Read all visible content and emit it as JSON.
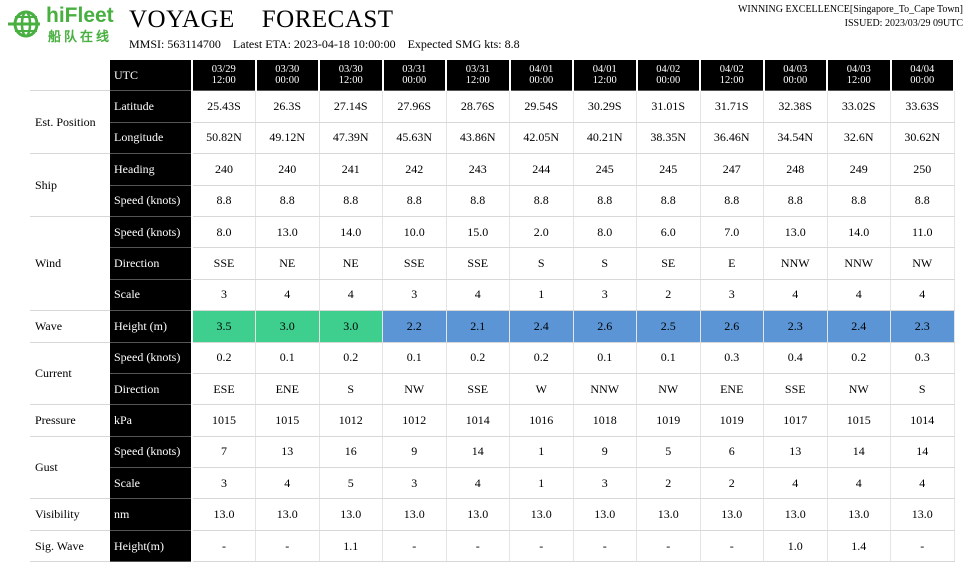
{
  "brand": {
    "name_en": "hiFleet",
    "name_zh": "船队在线"
  },
  "header": {
    "title": "VOYAGE    FORECAST",
    "mmsi": "MMSI: 563114700",
    "eta": "Latest ETA: 2023-04-18 10:00:00",
    "smg": "Expected SMG kts: 8.8",
    "vessel_route": "WINNING EXCELLENCE[Singapore_To_Cape Town]",
    "issued": "ISSUED: 2023/03/29 09UTC"
  },
  "colors": {
    "wave_calm": "#3ecf8e",
    "wave_moderate": "#5b95d5",
    "header_bg": "#000000",
    "brand": "#48b040"
  },
  "table": {
    "utc_label": "UTC",
    "utc_dates": [
      "03/29",
      "03/30",
      "03/30",
      "03/31",
      "03/31",
      "04/01",
      "04/01",
      "04/02",
      "04/02",
      "04/03",
      "04/03",
      "04/04"
    ],
    "utc_times": [
      "12:00",
      "00:00",
      "12:00",
      "00:00",
      "12:00",
      "00:00",
      "12:00",
      "00:00",
      "12:00",
      "00:00",
      "12:00",
      "00:00"
    ],
    "groups": [
      {
        "label": "Est. Position",
        "rows": [
          {
            "label": "Latitude",
            "values": [
              "25.43S",
              "26.3S",
              "27.14S",
              "27.96S",
              "28.76S",
              "29.54S",
              "30.29S",
              "31.01S",
              "31.71S",
              "32.38S",
              "33.02S",
              "33.63S"
            ]
          },
          {
            "label": "Longitude",
            "values": [
              "50.82N",
              "49.12N",
              "47.39N",
              "45.63N",
              "43.86N",
              "42.05N",
              "40.21N",
              "38.35N",
              "36.46N",
              "34.54N",
              "32.6N",
              "30.62N"
            ]
          }
        ]
      },
      {
        "label": "Ship",
        "rows": [
          {
            "label": "Heading",
            "values": [
              "240",
              "240",
              "241",
              "242",
              "243",
              "244",
              "245",
              "245",
              "247",
              "248",
              "249",
              "250"
            ]
          },
          {
            "label": "Speed (knots)",
            "values": [
              "8.8",
              "8.8",
              "8.8",
              "8.8",
              "8.8",
              "8.8",
              "8.8",
              "8.8",
              "8.8",
              "8.8",
              "8.8",
              "8.8"
            ]
          }
        ]
      },
      {
        "label": "Wind",
        "rows": [
          {
            "label": "Speed (knots)",
            "values": [
              "8.0",
              "13.0",
              "14.0",
              "10.0",
              "15.0",
              "2.0",
              "8.0",
              "6.0",
              "7.0",
              "13.0",
              "14.0",
              "11.0"
            ]
          },
          {
            "label": "Direction",
            "values": [
              "SSE",
              "NE",
              "NE",
              "SSE",
              "SSE",
              "S",
              "S",
              "SE",
              "E",
              "NNW",
              "NNW",
              "NW"
            ]
          },
          {
            "label": "Scale",
            "values": [
              "3",
              "4",
              "4",
              "3",
              "4",
              "1",
              "3",
              "2",
              "3",
              "4",
              "4",
              "4"
            ]
          }
        ]
      },
      {
        "label": "Wave",
        "highlight": true,
        "rows": [
          {
            "label": "Height  (m)",
            "values": [
              "3.5",
              "3.0",
              "3.0",
              "2.2",
              "2.1",
              "2.4",
              "2.6",
              "2.5",
              "2.6",
              "2.3",
              "2.4",
              "2.3"
            ],
            "colors": [
              "#3ecf8e",
              "#3ecf8e",
              "#3ecf8e",
              "#5b95d5",
              "#5b95d5",
              "#5b95d5",
              "#5b95d5",
              "#5b95d5",
              "#5b95d5",
              "#5b95d5",
              "#5b95d5",
              "#5b95d5"
            ]
          }
        ]
      },
      {
        "label": "Current",
        "rows": [
          {
            "label": "Speed (knots)",
            "values": [
              "0.2",
              "0.1",
              "0.2",
              "0.1",
              "0.2",
              "0.2",
              "0.1",
              "0.1",
              "0.3",
              "0.4",
              "0.2",
              "0.3"
            ]
          },
          {
            "label": "Direction",
            "values": [
              "ESE",
              "ENE",
              "S",
              "NW",
              "SSE",
              "W",
              "NNW",
              "NW",
              "ENE",
              "SSE",
              "NW",
              "S"
            ]
          }
        ]
      },
      {
        "label": "Pressure",
        "rows": [
          {
            "label": "kPa",
            "values": [
              "1015",
              "1015",
              "1012",
              "1012",
              "1014",
              "1016",
              "1018",
              "1019",
              "1019",
              "1017",
              "1015",
              "1014"
            ]
          }
        ]
      },
      {
        "label": "Gust",
        "rows": [
          {
            "label": "Speed (knots)",
            "values": [
              "7",
              "13",
              "16",
              "9",
              "14",
              "1",
              "9",
              "5",
              "6",
              "13",
              "14",
              "14"
            ]
          },
          {
            "label": "Scale",
            "values": [
              "3",
              "4",
              "5",
              "3",
              "4",
              "1",
              "3",
              "2",
              "2",
              "4",
              "4",
              "4"
            ]
          }
        ]
      },
      {
        "label": "Visibility",
        "rows": [
          {
            "label": "nm",
            "values": [
              "13.0",
              "13.0",
              "13.0",
              "13.0",
              "13.0",
              "13.0",
              "13.0",
              "13.0",
              "13.0",
              "13.0",
              "13.0",
              "13.0"
            ]
          }
        ]
      },
      {
        "label": "Sig. Wave",
        "rows": [
          {
            "label": "Height(m)",
            "values": [
              "-",
              "-",
              "1.1",
              "-",
              "-",
              "-",
              "-",
              "-",
              "-",
              "1.0",
              "1.4",
              "-"
            ]
          }
        ]
      }
    ]
  }
}
